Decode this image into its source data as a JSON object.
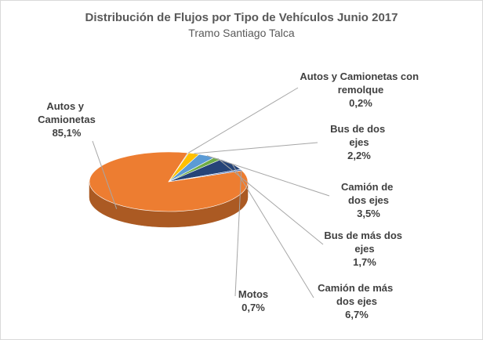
{
  "chart_data": {
    "type": "pie3d",
    "title": "Distribución de Flujos por Tipo de Vehículos Junio 2017",
    "subtitle": "Tramo Santiago Talca",
    "categories": [
      "Autos y Camionetas",
      "Autos y Camionetas con remolque",
      "Bus de dos ejes",
      "Camión de dos ejes",
      "Bus de más dos ejes",
      "Camión de más dos ejes",
      "Motos"
    ],
    "values": [
      85.1,
      0.2,
      2.2,
      3.5,
      1.7,
      6.7,
      0.7
    ],
    "value_labels": [
      "85,1%",
      "0,2%",
      "2,2%",
      "3,5%",
      "1,7%",
      "6,7%",
      "0,7%"
    ],
    "colors": [
      "#ED7D31",
      "#A5A5A5",
      "#FFC000",
      "#5B9BD5",
      "#70AD47",
      "#264478",
      "#4472C4"
    ]
  }
}
